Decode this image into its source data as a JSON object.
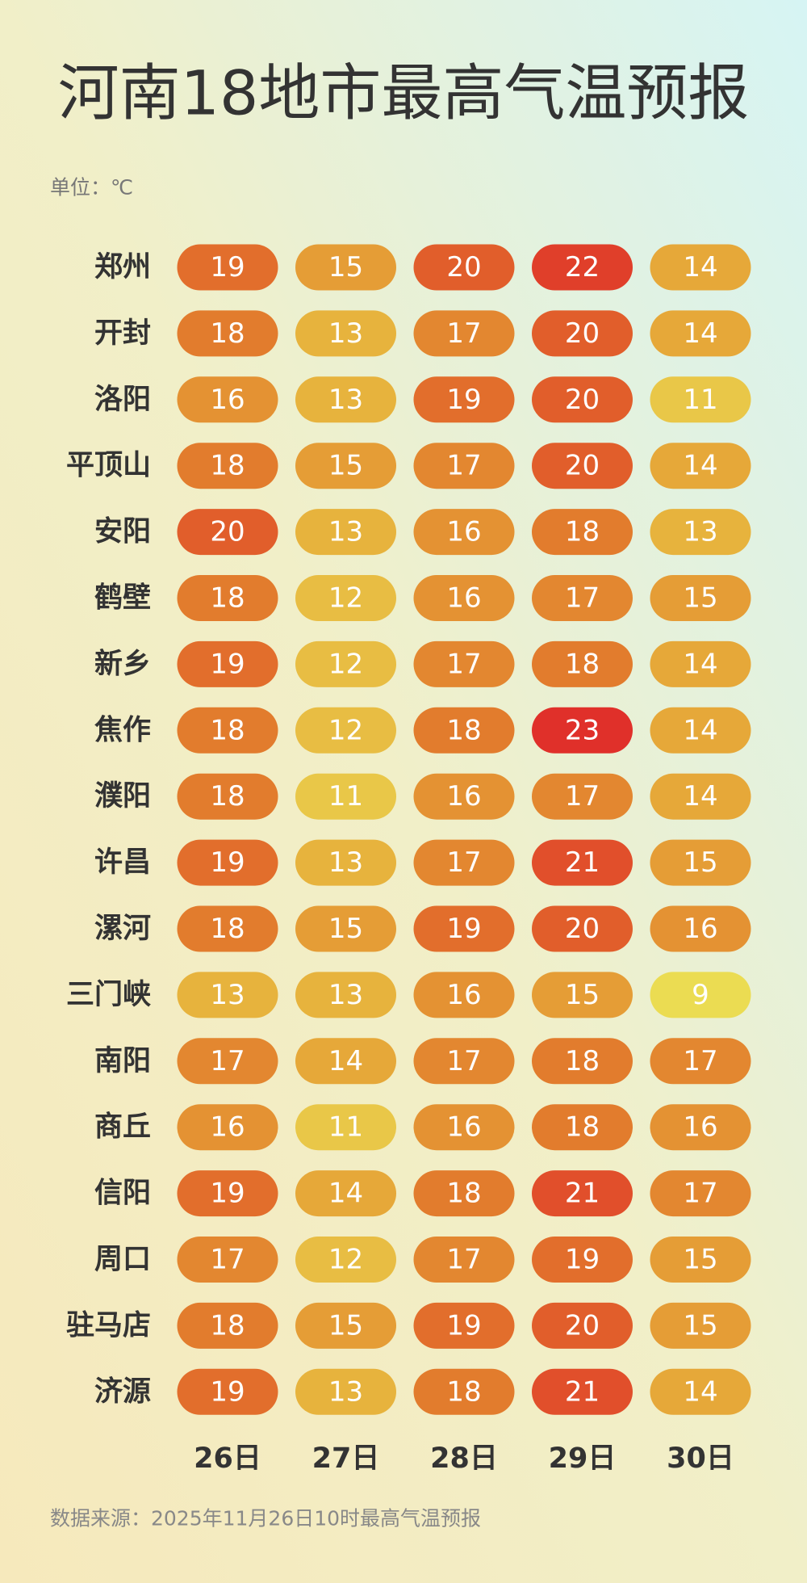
{
  "chart_data": {
    "type": "heatmap",
    "title": "河南18地市最高气温预报",
    "subtitle": "单位：℃",
    "source": "数据来源：2025年11月26日10时最高气温预报",
    "x": [
      "26日",
      "27日",
      "28日",
      "29日",
      "30日"
    ],
    "y": [
      "郑州",
      "开封",
      "洛阳",
      "平顶山",
      "安阳",
      "鹤壁",
      "新乡",
      "焦作",
      "濮阳",
      "许昌",
      "漯河",
      "三门峡",
      "南阳",
      "商丘",
      "信阳",
      "周口",
      "驻马店",
      "济源"
    ],
    "values": [
      [
        19,
        15,
        20,
        22,
        14
      ],
      [
        18,
        13,
        17,
        20,
        14
      ],
      [
        16,
        13,
        19,
        20,
        11
      ],
      [
        18,
        15,
        17,
        20,
        14
      ],
      [
        20,
        13,
        16,
        18,
        13
      ],
      [
        18,
        12,
        16,
        17,
        15
      ],
      [
        19,
        12,
        17,
        18,
        14
      ],
      [
        18,
        12,
        18,
        23,
        14
      ],
      [
        18,
        11,
        16,
        17,
        14
      ],
      [
        19,
        13,
        17,
        21,
        15
      ],
      [
        18,
        15,
        19,
        20,
        16
      ],
      [
        13,
        13,
        16,
        15,
        9
      ],
      [
        17,
        14,
        17,
        18,
        17
      ],
      [
        16,
        11,
        16,
        18,
        16
      ],
      [
        19,
        14,
        18,
        21,
        17
      ],
      [
        17,
        12,
        17,
        19,
        15
      ],
      [
        18,
        15,
        19,
        20,
        15
      ],
      [
        19,
        13,
        18,
        21,
        14
      ]
    ],
    "colorscale": [
      "#ebdc52",
      "#e6ac3a",
      "#e2782c",
      "#e0302a"
    ]
  }
}
